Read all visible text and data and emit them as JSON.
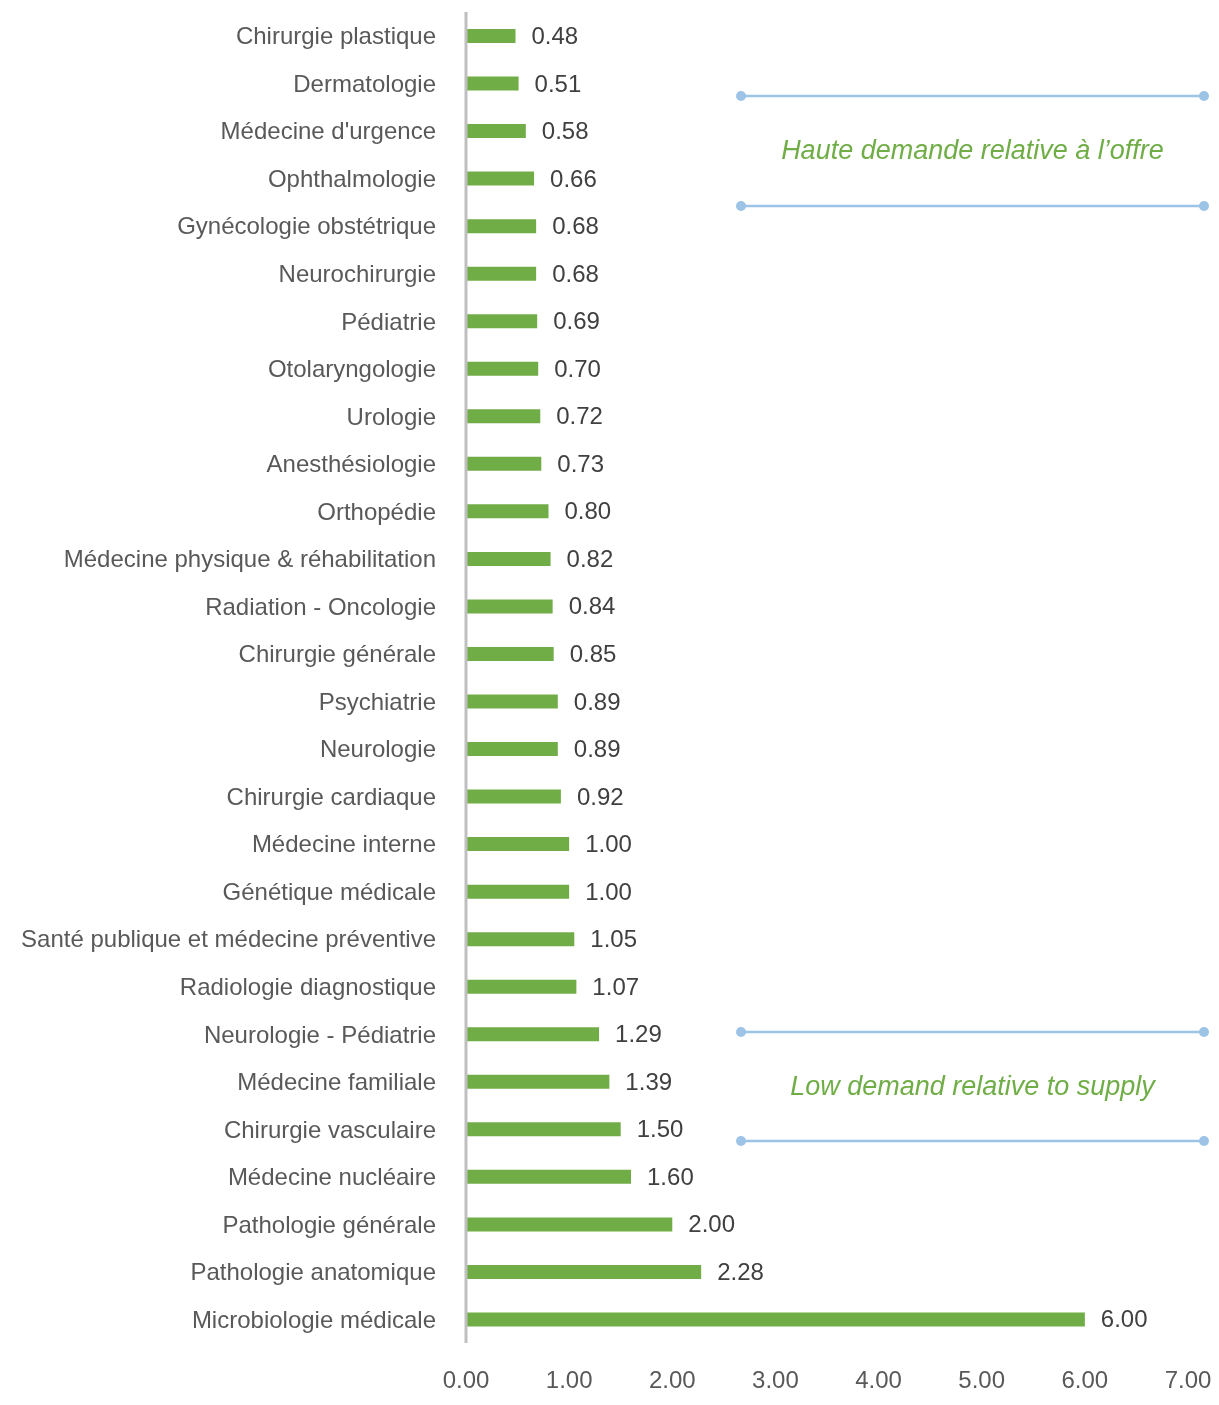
{
  "chart_data": {
    "type": "bar",
    "orientation": "horizontal",
    "categories": [
      "Chirurgie plastique",
      "Dermatologie",
      "Médecine d'urgence",
      "Ophthalmologie",
      "Gynécologie obstétrique",
      "Neurochirurgie",
      "Pédiatrie",
      "Otolaryngologie",
      "Urologie",
      "Anesthésiologie",
      "Orthopédie",
      "Médecine physique & réhabilitation",
      "Radiation - Oncologie",
      "Chirurgie générale",
      "Psychiatrie",
      "Neurologie",
      "Chirurgie cardiaque",
      "Médecine interne",
      "Génétique médicale",
      "Santé publique et médecine préventive",
      "Radiologie diagnostique",
      "Neurologie - Pédiatrie",
      "Médecine familiale",
      "Chirurgie vasculaire",
      "Médecine nucléaire",
      "Pathologie générale",
      "Pathologie anatomique",
      "Microbiologie médicale"
    ],
    "values": [
      0.48,
      0.51,
      0.58,
      0.66,
      0.68,
      0.68,
      0.69,
      0.7,
      0.72,
      0.73,
      0.8,
      0.82,
      0.84,
      0.85,
      0.89,
      0.89,
      0.92,
      1.0,
      1.0,
      1.05,
      1.07,
      1.29,
      1.39,
      1.5,
      1.6,
      2.0,
      2.28,
      6.0
    ],
    "value_labels": [
      "0.48",
      "0.51",
      "0.58",
      "0.66",
      "0.68",
      "0.68",
      "0.69",
      "0.70",
      "0.72",
      "0.73",
      "0.80",
      "0.82",
      "0.84",
      "0.85",
      "0.89",
      "0.89",
      "0.92",
      "1.00",
      "1.00",
      "1.05",
      "1.07",
      "1.29",
      "1.39",
      "1.50",
      "1.60",
      "2.00",
      "2.28",
      "6.00"
    ],
    "color": "#70ad47",
    "xlim": [
      0,
      7
    ],
    "xticks": [
      {
        "value": 0,
        "label": "0.00"
      },
      {
        "value": 1,
        "label": "1.00"
      },
      {
        "value": 2,
        "label": "2.00"
      },
      {
        "value": 3,
        "label": "3.00"
      },
      {
        "value": 4,
        "label": "4.00"
      },
      {
        "value": 5,
        "label": "5.00"
      },
      {
        "value": 6,
        "label": "6.00"
      },
      {
        "value": 7,
        "label": "7.00"
      }
    ],
    "annotations": [
      "Haute demande relative à l’offre",
      "Low demand relative to supply"
    ]
  }
}
